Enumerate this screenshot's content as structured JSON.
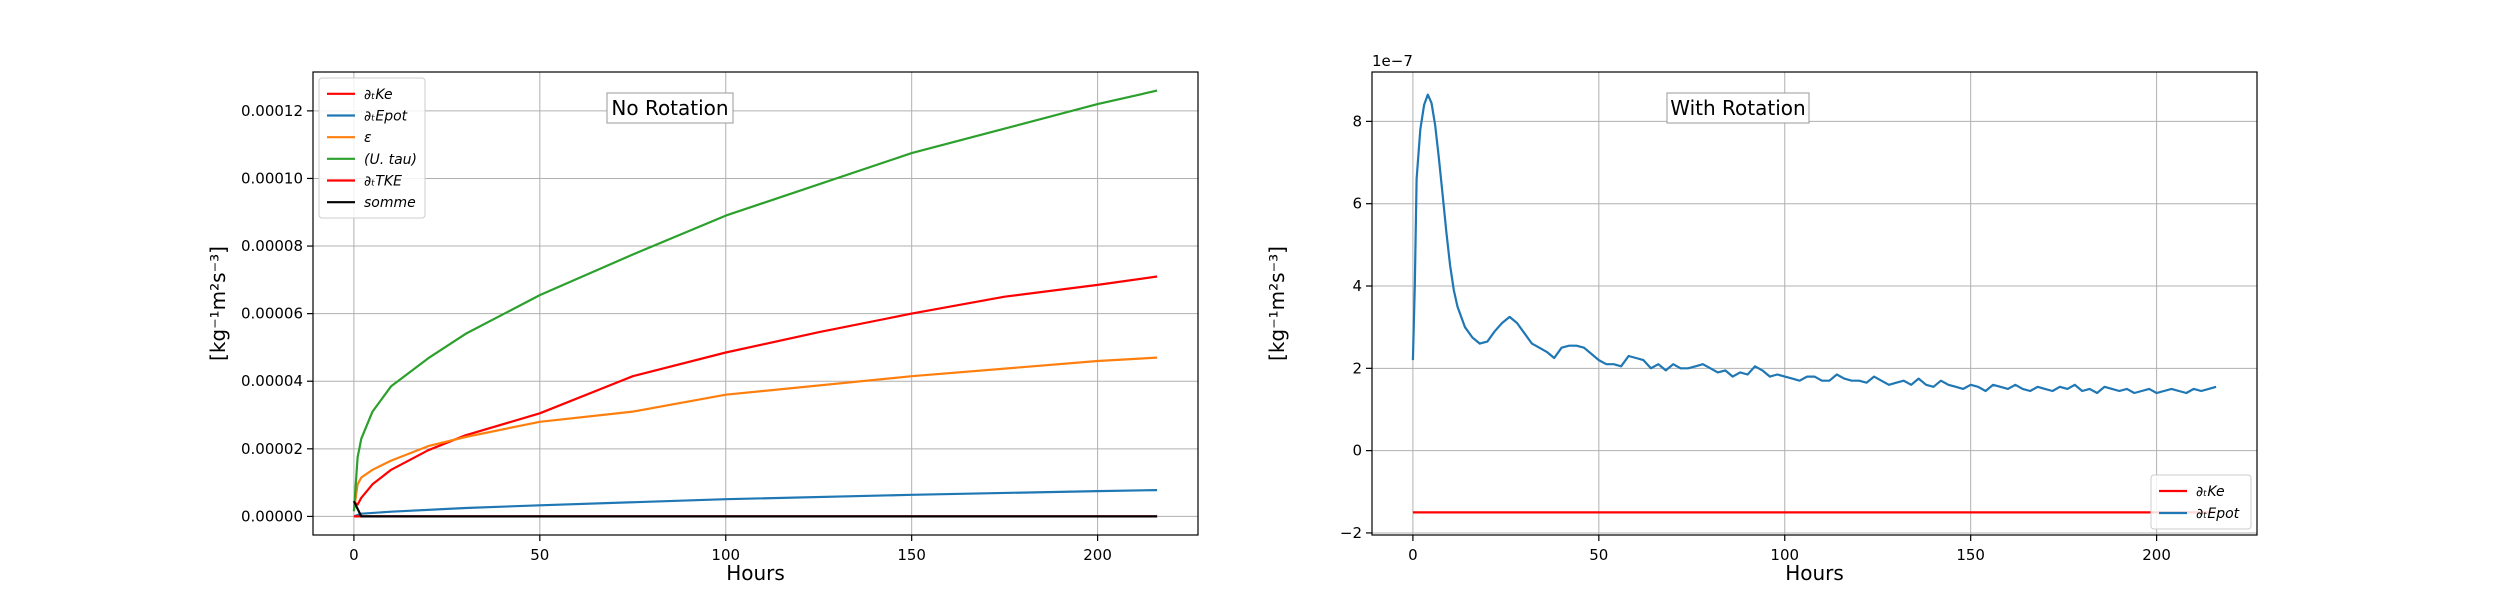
{
  "chart_data": [
    {
      "type": "line",
      "title": "No Rotation",
      "xlabel": "Hours",
      "ylabel": "[kg⁻¹m²s⁻³]",
      "xlim": [
        -11,
        227
      ],
      "ylim": [
        -5.5e-06,
        0.0001315
      ],
      "xticks": [
        0,
        50,
        100,
        150,
        200
      ],
      "xtick_labels": [
        "0",
        "50",
        "100",
        "150",
        "200"
      ],
      "yticks": [
        0,
        2e-05,
        4e-05,
        6e-05,
        8e-05,
        0.0001,
        0.00012
      ],
      "ytick_labels": [
        "0.00000",
        "0.00002",
        "0.00004",
        "0.00006",
        "0.00008",
        "0.00010",
        "0.00012"
      ],
      "grid": true,
      "legend_position": "top-left",
      "series": [
        {
          "name": "∂ₜKe",
          "color": "#ff0000",
          "x": [
            0,
            1,
            2,
            5,
            10,
            20,
            30,
            50,
            75,
            100,
            125,
            150,
            175,
            200,
            216
          ],
          "y": [
            4.2e-06,
            3.5e-06,
            5.5e-06,
            9.5e-06,
            1.38e-05,
            1.96e-05,
            2.4e-05,
            3.05e-05,
            4.15e-05,
            4.85e-05,
            5.45e-05,
            6e-05,
            6.5e-05,
            6.85e-05,
            7.1e-05
          ]
        },
        {
          "name": "∂ₜEpot",
          "color": "#1f77b4",
          "x": [
            0,
            2,
            10,
            30,
            50,
            100,
            150,
            200,
            216
          ],
          "y": [
            0,
            8e-07,
            1.4e-06,
            2.5e-06,
            3.3e-06,
            5.1e-06,
            6.4e-06,
            7.5e-06,
            7.8e-06
          ]
        },
        {
          "name": "ε",
          "color": "#ff7f0e",
          "x": [
            0,
            1,
            2,
            5,
            10,
            20,
            30,
            50,
            75,
            100,
            150,
            200,
            216
          ],
          "y": [
            1.8e-06,
            9.5e-06,
            1.15e-05,
            1.38e-05,
            1.65e-05,
            2.08e-05,
            2.35e-05,
            2.8e-05,
            3.1e-05,
            3.6e-05,
            4.15e-05,
            4.6e-05,
            4.7e-05
          ]
        },
        {
          "name": "(U. tau)",
          "color": "#2ca02c",
          "x": [
            0,
            1,
            2,
            5,
            10,
            20,
            30,
            50,
            75,
            100,
            150,
            200,
            216
          ],
          "y": [
            1.5e-06,
            1.75e-05,
            2.3e-05,
            3.1e-05,
            3.85e-05,
            4.68e-05,
            5.4e-05,
            6.55e-05,
            7.75e-05,
            8.9e-05,
            0.0001075,
            0.000122,
            0.000126
          ]
        },
        {
          "name": "∂ₜTKE",
          "color": "#ff0000",
          "x": [
            0,
            216
          ],
          "y": [
            0,
            0
          ]
        },
        {
          "name": "somme",
          "color": "#000000",
          "x": [
            0,
            2,
            216
          ],
          "y": [
            4.5e-06,
            0,
            0
          ]
        }
      ]
    },
    {
      "type": "line",
      "title": "With Rotation",
      "xlabel": "Hours",
      "ylabel": "[kg⁻¹m²s⁻³]",
      "offset_text": "1e−7",
      "xlim": [
        -11,
        227
      ],
      "ylim": [
        -2.05,
        9.2
      ],
      "xticks": [
        0,
        50,
        100,
        150,
        200
      ],
      "xtick_labels": [
        "0",
        "50",
        "100",
        "150",
        "200"
      ],
      "yticks": [
        -2,
        0,
        2,
        4,
        6,
        8
      ],
      "ytick_labels": [
        "−2",
        "0",
        "2",
        "4",
        "6",
        "8"
      ],
      "grid": true,
      "legend_position": "bottom-right",
      "series": [
        {
          "name": "∂ₜKe",
          "color": "#ff0000",
          "x": [
            0,
            216
          ],
          "y": [
            -1.5,
            -1.5
          ]
        },
        {
          "name": "∂ₜEpot",
          "color": "#1f77b4",
          "x": [
            0,
            0.5,
            1,
            2,
            3,
            4,
            5,
            6,
            7,
            8,
            9,
            10,
            11,
            12,
            13,
            14,
            16,
            18,
            20,
            22,
            24,
            26,
            28,
            30,
            32,
            34,
            36,
            38,
            40,
            42,
            44,
            46,
            48,
            50,
            52,
            54,
            56,
            58,
            60,
            62,
            64,
            66,
            68,
            70,
            72,
            74,
            76,
            78,
            80,
            82,
            84,
            86,
            88,
            90,
            92,
            94,
            96,
            98,
            100,
            102,
            104,
            106,
            108,
            110,
            112,
            114,
            116,
            118,
            120,
            122,
            124,
            126,
            128,
            130,
            132,
            134,
            136,
            138,
            140,
            142,
            144,
            146,
            148,
            150,
            152,
            154,
            156,
            158,
            160,
            162,
            164,
            166,
            168,
            170,
            172,
            174,
            176,
            178,
            180,
            182,
            184,
            186,
            188,
            190,
            192,
            194,
            196,
            198,
            200,
            202,
            204,
            206,
            208,
            210,
            212,
            214,
            216
          ],
          "y": [
            2.2,
            4.0,
            6.6,
            7.8,
            8.4,
            8.65,
            8.45,
            7.9,
            7.1,
            6.2,
            5.3,
            4.5,
            3.9,
            3.5,
            3.25,
            3.0,
            2.75,
            2.6,
            2.65,
            2.9,
            3.1,
            3.25,
            3.1,
            2.85,
            2.6,
            2.5,
            2.4,
            2.25,
            2.5,
            2.55,
            2.55,
            2.5,
            2.35,
            2.2,
            2.1,
            2.1,
            2.05,
            2.3,
            2.25,
            2.2,
            2.0,
            2.1,
            1.95,
            2.1,
            2.0,
            2.0,
            2.05,
            2.1,
            2.0,
            1.9,
            1.95,
            1.8,
            1.9,
            1.85,
            2.05,
            1.95,
            1.8,
            1.85,
            1.8,
            1.75,
            1.7,
            1.8,
            1.8,
            1.7,
            1.7,
            1.85,
            1.75,
            1.7,
            1.7,
            1.65,
            1.8,
            1.7,
            1.6,
            1.65,
            1.7,
            1.6,
            1.75,
            1.6,
            1.55,
            1.7,
            1.6,
            1.55,
            1.5,
            1.6,
            1.55,
            1.45,
            1.6,
            1.55,
            1.5,
            1.6,
            1.5,
            1.45,
            1.55,
            1.5,
            1.45,
            1.55,
            1.5,
            1.6,
            1.45,
            1.5,
            1.4,
            1.55,
            1.5,
            1.45,
            1.5,
            1.4,
            1.45,
            1.5,
            1.4,
            1.45,
            1.5,
            1.45,
            1.4,
            1.5,
            1.45,
            1.5,
            1.55
          ]
        }
      ]
    }
  ]
}
